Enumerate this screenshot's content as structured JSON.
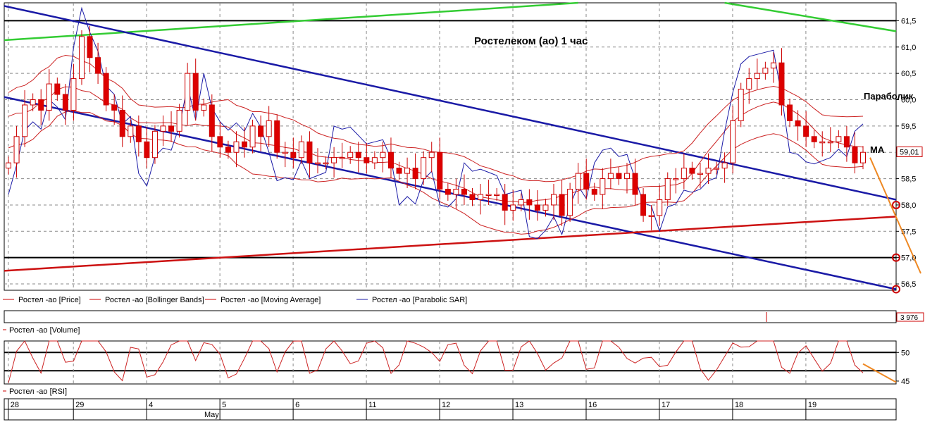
{
  "chart_data": {
    "type": "candlestick",
    "title": "Ростелеком (ао)   1 час",
    "annotations": {
      "parabolic": "Параболик",
      "ma": "МА"
    },
    "price_axis": {
      "ticks": [
        "56,5",
        "57,0",
        "57,5",
        "58,0",
        "58,5",
        "59,0",
        "59,5",
        "60,0",
        "60,5",
        "61,0",
        "61,5"
      ],
      "tick_values": [
        56.5,
        57.0,
        57.5,
        58.0,
        58.5,
        59.0,
        59.5,
        60.0,
        60.5,
        61.0,
        61.5
      ],
      "range": [
        56.38,
        61.84
      ],
      "last_price_label": "59,01",
      "last_price": 59.01,
      "marked_levels": [
        58.0,
        57.0,
        56.4
      ],
      "grid": true
    },
    "legend": [
      "Ростел -ао [Price]",
      "Ростел -ао [Bollinger Bands]",
      "Ростел -ао [Moving Average]",
      "Ростел -ао [Parabolic SAR]"
    ],
    "volume_panel": {
      "legend": "Ростел -ао [Volume]",
      "last_value_label": "3 976"
    },
    "rsi_panel": {
      "legend": "Ростел -ао [RSI]",
      "ticks": [
        "45",
        "50"
      ],
      "tick_values": [
        45,
        50
      ],
      "range": [
        44.5,
        52
      ],
      "levels": [
        46.8,
        50.0
      ]
    },
    "x_axis": {
      "days": [
        "28",
        "29",
        "4",
        "5",
        "6",
        "11",
        "12",
        "13",
        "16",
        "17",
        "18",
        "19"
      ],
      "day_positions": [
        0.5,
        8.5,
        17.5,
        26.5,
        35.5,
        44.5,
        53.5,
        62.5,
        71.5,
        80.5,
        89.5,
        98.5
      ],
      "month_label": "May"
    },
    "candles_close": [
      58.8,
      59.3,
      59.9,
      60.0,
      59.8,
      60.3,
      60.1,
      59.8,
      60.4,
      61.2,
      60.8,
      60.5,
      59.9,
      59.8,
      59.3,
      59.5,
      59.2,
      58.9,
      59.4,
      59.5,
      59.4,
      59.8,
      60.5,
      59.8,
      59.9,
      59.3,
      59.1,
      59.0,
      59.2,
      59.1,
      59.5,
      59.3,
      59.6,
      59.0,
      59.0,
      58.9,
      59.2,
      58.8,
      58.8,
      58.8,
      58.9,
      58.9,
      59.0,
      58.9,
      58.8,
      58.9,
      59.0,
      58.7,
      58.6,
      58.7,
      58.5,
      58.9,
      59.0,
      58.3,
      58.2,
      58.3,
      58.2,
      58.1,
      58.2,
      58.2,
      58.2,
      57.9,
      58.0,
      58.1,
      58.0,
      57.9,
      58.0,
      58.2,
      57.8,
      58.3,
      58.6,
      58.3,
      58.2,
      58.5,
      58.6,
      58.5,
      58.6,
      58.2,
      57.8,
      57.8,
      58.1,
      58.5,
      58.5,
      58.7,
      58.6,
      58.6,
      58.7,
      58.7,
      58.8,
      59.6,
      60.2,
      60.4,
      60.5,
      60.6,
      60.7,
      59.9,
      59.6,
      59.5,
      59.3,
      59.2,
      59.2,
      59.2,
      59.3,
      59.1,
      58.8,
      59.0
    ]
  }
}
